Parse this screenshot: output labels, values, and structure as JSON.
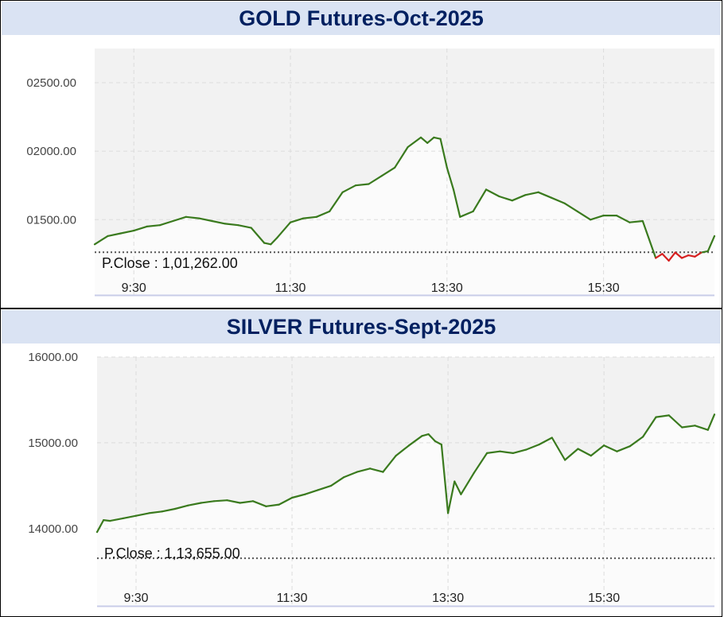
{
  "chart_data": [
    {
      "type": "line",
      "title": "GOLD Futures-Oct-2025",
      "y_ticks": [
        "02500.00",
        "02000.00",
        "01500.00"
      ],
      "y_tick_values": [
        102500,
        102000,
        101500
      ],
      "x_ticks": [
        "9:30",
        "11:30",
        "13:30",
        "15:30"
      ],
      "ylim": [
        100950,
        102750
      ],
      "xlim": [
        "09:00",
        "16:55"
      ],
      "pclose_label": "P.Close : 1,01,262.00",
      "pclose_value": 101262,
      "line_color": "#3a7a1e",
      "below_color": "#d62020",
      "series": [
        {
          "x": [
            "09:00",
            "09:10",
            "09:20",
            "09:30",
            "09:40",
            "09:50",
            "10:00",
            "10:10",
            "10:20",
            "10:30",
            "10:40",
            "10:50",
            "11:00",
            "11:10",
            "11:15",
            "11:20",
            "11:30",
            "11:40",
            "11:50",
            "12:00",
            "12:10",
            "12:20",
            "12:30",
            "12:40",
            "12:50",
            "13:00",
            "13:10",
            "13:15",
            "13:20",
            "13:25",
            "13:30",
            "13:35",
            "13:40",
            "13:50",
            "13:55",
            "14:00",
            "14:10",
            "14:20",
            "14:30",
            "14:40",
            "14:50",
            "15:00",
            "15:10",
            "15:20",
            "15:30",
            "15:40",
            "15:50",
            "16:00",
            "16:10",
            "16:15",
            "16:20",
            "16:25",
            "16:30",
            "16:35",
            "16:40",
            "16:45",
            "16:50",
            "16:55"
          ],
          "y": [
            101320,
            101380,
            101400,
            101420,
            101450,
            101460,
            101490,
            101520,
            101510,
            101490,
            101470,
            101460,
            101440,
            101330,
            101320,
            101370,
            101480,
            101510,
            101520,
            101560,
            101700,
            101750,
            101760,
            101820,
            101880,
            102030,
            102100,
            102060,
            102100,
            102090,
            101880,
            101720,
            101520,
            101560,
            101640,
            101720,
            101670,
            101640,
            101680,
            101700,
            101660,
            101620,
            101560,
            101500,
            101530,
            101530,
            101480,
            101490,
            101220,
            101250,
            101200,
            101260,
            101220,
            101240,
            101230,
            101260,
            101270,
            101380
          ]
        }
      ]
    },
    {
      "type": "line",
      "title": "SILVER Futures-Sept-2025",
      "y_ticks": [
        "16000.00",
        "15000.00",
        "14000.00"
      ],
      "y_tick_values": [
        116000,
        115000,
        114000
      ],
      "x_ticks": [
        "9:30",
        "11:30",
        "13:30",
        "15:30"
      ],
      "ylim": [
        113100,
        116000
      ],
      "xlim": [
        "09:00",
        "16:55"
      ],
      "pclose_label": "P.Close : 1,13,655.00",
      "pclose_value": 113655,
      "line_color": "#3a7a1e",
      "series": [
        {
          "x": [
            "09:00",
            "09:05",
            "09:10",
            "09:20",
            "09:30",
            "09:40",
            "09:50",
            "10:00",
            "10:10",
            "10:20",
            "10:30",
            "10:40",
            "10:50",
            "11:00",
            "11:10",
            "11:20",
            "11:30",
            "11:40",
            "11:50",
            "12:00",
            "12:10",
            "12:20",
            "12:30",
            "12:40",
            "12:50",
            "13:00",
            "13:10",
            "13:15",
            "13:20",
            "13:25",
            "13:30",
            "13:35",
            "13:40",
            "13:50",
            "14:00",
            "14:10",
            "14:20",
            "14:30",
            "14:40",
            "14:50",
            "15:00",
            "15:10",
            "15:20",
            "15:30",
            "15:40",
            "15:50",
            "16:00",
            "16:10",
            "16:20",
            "16:30",
            "16:40",
            "16:50",
            "16:55"
          ],
          "y": [
            113960,
            114100,
            114090,
            114120,
            114150,
            114180,
            114200,
            114230,
            114270,
            114300,
            114320,
            114330,
            114300,
            114320,
            114260,
            114280,
            114360,
            114400,
            114450,
            114500,
            114600,
            114660,
            114700,
            114660,
            114850,
            114970,
            115080,
            115100,
            115020,
            114980,
            114180,
            114550,
            114400,
            114650,
            114880,
            114900,
            114880,
            114920,
            114980,
            115060,
            114800,
            114930,
            114850,
            114970,
            114900,
            114960,
            115070,
            115300,
            115320,
            115180,
            115200,
            115150,
            115330
          ]
        }
      ]
    }
  ]
}
